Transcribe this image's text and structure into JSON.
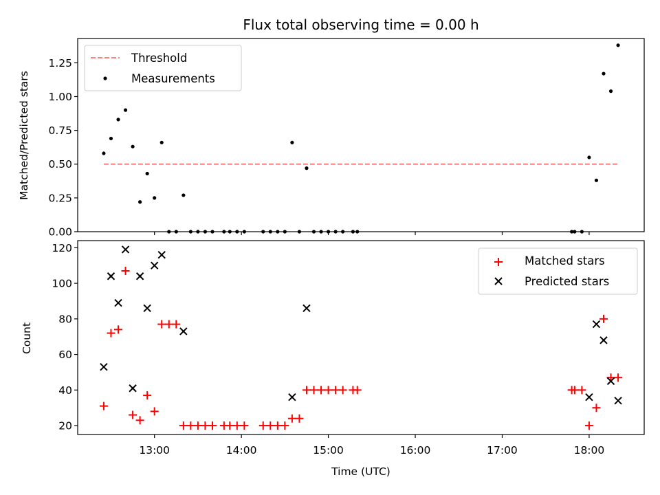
{
  "chart_data": [
    {
      "type": "scatter",
      "title": "Flux total observing time = 0.00 h",
      "xlabel": "",
      "ylabel": "Matched/Predicted stars",
      "ylim": [
        0,
        1.43
      ],
      "xlim": [
        "12:07",
        "18:38"
      ],
      "yticks": [
        "0.00",
        "0.25",
        "0.50",
        "0.75",
        "1.00",
        "1.25"
      ],
      "ytick_values": [
        0,
        0.25,
        0.5,
        0.75,
        1.0,
        1.25
      ],
      "legend": {
        "placement": "upper-left",
        "entries": [
          "Threshold",
          "Measurements"
        ]
      },
      "threshold": {
        "name": "Threshold",
        "y": 0.5,
        "x_range": [
          "12:25",
          "18:20"
        ],
        "color": "#ff7f7f",
        "style": "dashed"
      },
      "series": [
        {
          "name": "Measurements",
          "color": "#000000",
          "marker": "dot",
          "points": [
            [
              "12:25",
              0.58
            ],
            [
              "12:30",
              0.69
            ],
            [
              "12:35",
              0.83
            ],
            [
              "12:40",
              0.9
            ],
            [
              "12:45",
              0.63
            ],
            [
              "12:50",
              0.22
            ],
            [
              "12:55",
              0.43
            ],
            [
              "13:00",
              0.25
            ],
            [
              "13:05",
              0.66
            ],
            [
              "13:10",
              0.0
            ],
            [
              "13:15",
              0.0
            ],
            [
              "13:20",
              0.27
            ],
            [
              "13:25",
              0.0
            ],
            [
              "13:30",
              0.0
            ],
            [
              "13:35",
              0.0
            ],
            [
              "13:40",
              0.0
            ],
            [
              "13:48",
              0.0
            ],
            [
              "13:52",
              0.0
            ],
            [
              "13:57",
              0.0
            ],
            [
              "14:02",
              0.0
            ],
            [
              "14:15",
              0.0
            ],
            [
              "14:20",
              0.0
            ],
            [
              "14:25",
              0.0
            ],
            [
              "14:30",
              0.0
            ],
            [
              "14:35",
              0.66
            ],
            [
              "14:40",
              0.0
            ],
            [
              "14:45",
              0.47
            ],
            [
              "14:50",
              0.0
            ],
            [
              "14:55",
              0.0
            ],
            [
              "15:00",
              0.0
            ],
            [
              "15:05",
              0.0
            ],
            [
              "15:10",
              0.0
            ],
            [
              "15:17",
              0.0
            ],
            [
              "15:20",
              0.0
            ],
            [
              "17:48",
              0.0
            ],
            [
              "17:50",
              0.0
            ],
            [
              "17:55",
              0.0
            ],
            [
              "18:00",
              0.55
            ],
            [
              "18:05",
              0.38
            ],
            [
              "18:10",
              1.17
            ],
            [
              "18:15",
              1.04
            ],
            [
              "18:20",
              1.38
            ]
          ]
        }
      ]
    },
    {
      "type": "scatter",
      "title": "",
      "xlabel": "Time (UTC)",
      "ylabel": "Count",
      "ylim": [
        15,
        124
      ],
      "xlim": [
        "12:07",
        "18:38"
      ],
      "xticks": [
        "13:00",
        "14:00",
        "15:00",
        "16:00",
        "17:00",
        "18:00"
      ],
      "yticks": [
        "20",
        "40",
        "60",
        "80",
        "100",
        "120"
      ],
      "ytick_values": [
        20,
        40,
        60,
        80,
        100,
        120
      ],
      "legend": {
        "placement": "upper-right",
        "entries": [
          "Matched stars",
          "Predicted stars"
        ]
      },
      "series": [
        {
          "name": "Matched stars",
          "color": "#ff0000",
          "marker": "plus",
          "points": [
            [
              "12:25",
              31
            ],
            [
              "12:30",
              72
            ],
            [
              "12:35",
              74
            ],
            [
              "12:40",
              107
            ],
            [
              "12:45",
              26
            ],
            [
              "12:50",
              23
            ],
            [
              "12:55",
              37
            ],
            [
              "13:00",
              28
            ],
            [
              "13:05",
              77
            ],
            [
              "13:10",
              77
            ],
            [
              "13:15",
              77
            ],
            [
              "13:20",
              20
            ],
            [
              "13:25",
              20
            ],
            [
              "13:30",
              20
            ],
            [
              "13:35",
              20
            ],
            [
              "13:40",
              20
            ],
            [
              "13:48",
              20
            ],
            [
              "13:52",
              20
            ],
            [
              "13:57",
              20
            ],
            [
              "14:02",
              20
            ],
            [
              "14:15",
              20
            ],
            [
              "14:20",
              20
            ],
            [
              "14:25",
              20
            ],
            [
              "14:30",
              20
            ],
            [
              "14:35",
              24
            ],
            [
              "14:40",
              24
            ],
            [
              "14:45",
              40
            ],
            [
              "14:50",
              40
            ],
            [
              "14:55",
              40
            ],
            [
              "15:00",
              40
            ],
            [
              "15:05",
              40
            ],
            [
              "15:10",
              40
            ],
            [
              "15:17",
              40
            ],
            [
              "15:20",
              40
            ],
            [
              "17:48",
              40
            ],
            [
              "17:50",
              40
            ],
            [
              "17:55",
              40
            ],
            [
              "18:00",
              20
            ],
            [
              "18:05",
              30
            ],
            [
              "18:10",
              80
            ],
            [
              "18:15",
              47
            ],
            [
              "18:20",
              47
            ]
          ]
        },
        {
          "name": "Predicted stars",
          "color": "#000000",
          "marker": "x",
          "points": [
            [
              "12:25",
              53
            ],
            [
              "12:30",
              104
            ],
            [
              "12:35",
              89
            ],
            [
              "12:40",
              119
            ],
            [
              "12:45",
              41
            ],
            [
              "12:50",
              104
            ],
            [
              "12:55",
              86
            ],
            [
              "13:00",
              110
            ],
            [
              "13:05",
              116
            ],
            [
              "13:20",
              73
            ],
            [
              "14:35",
              36
            ],
            [
              "14:45",
              86
            ],
            [
              "18:00",
              36
            ],
            [
              "18:05",
              77
            ],
            [
              "18:10",
              68
            ],
            [
              "18:15",
              45
            ],
            [
              "18:20",
              34
            ]
          ]
        }
      ]
    }
  ]
}
